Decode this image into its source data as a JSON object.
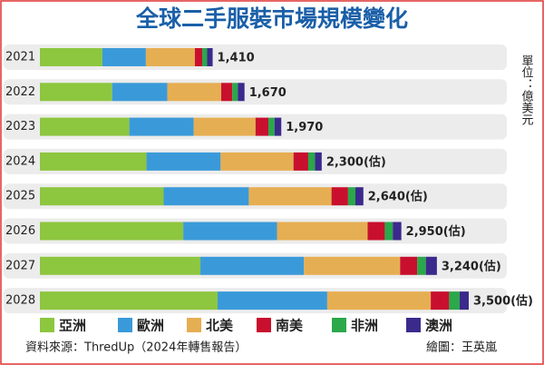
{
  "chart_data": {
    "type": "stacked-bar-horizontal",
    "title": "全球二手服裝市場規模變化",
    "unit": "單位：億美元",
    "categories": [
      "2021",
      "2022",
      "2023",
      "2024",
      "2025",
      "2026",
      "2027",
      "2028"
    ],
    "series": [
      {
        "name": "亞洲",
        "color": "#8dc63f",
        "values": [
          510,
          590,
          730,
          870,
          1010,
          1170,
          1310,
          1450
        ]
      },
      {
        "name": "歐洲",
        "color": "#3a9ad9",
        "values": [
          355,
          450,
          525,
          605,
          695,
          765,
          845,
          895
        ]
      },
      {
        "name": "北美",
        "color": "#e6ae52",
        "values": [
          400,
          440,
          505,
          595,
          675,
          740,
          785,
          845
        ]
      },
      {
        "name": "南美",
        "color": "#c8102e",
        "values": [
          60,
          90,
          105,
          120,
          135,
          140,
          140,
          150
        ]
      },
      {
        "name": "非洲",
        "color": "#2aa84a",
        "values": [
          40,
          45,
          50,
          55,
          60,
          65,
          70,
          85
        ]
      },
      {
        "name": "澳洲",
        "color": "#3b2a8c",
        "values": [
          45,
          55,
          55,
          55,
          65,
          70,
          90,
          75
        ]
      }
    ],
    "totals": [
      1410,
      1670,
      1970,
      2300,
      2640,
      2950,
      3240,
      3500
    ],
    "total_labels": [
      "1,410",
      "1,670",
      "1,970",
      "2,300(估)",
      "2,640(估)",
      "2,950(估)",
      "3,240(估)",
      "3,500(估)"
    ],
    "source": "資料來源：ThredUp（2024年轉售報告）",
    "credit": "繪圖：王英嵐"
  }
}
